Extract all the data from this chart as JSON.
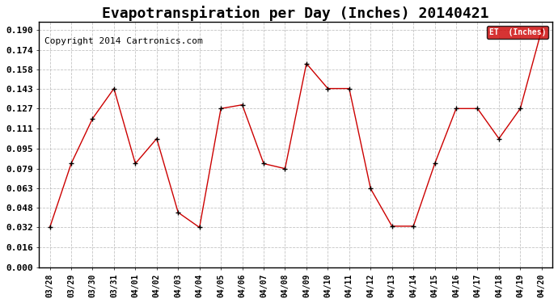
{
  "title": "Evapotranspiration per Day (Inches) 20140421",
  "copyright": "Copyright 2014 Cartronics.com",
  "legend_label": "ET  (Inches)",
  "x_labels": [
    "03/28",
    "03/29",
    "03/30",
    "03/31",
    "04/01",
    "04/02",
    "04/03",
    "04/04",
    "04/05",
    "04/06",
    "04/07",
    "04/08",
    "04/09",
    "04/10",
    "04/11",
    "04/12",
    "04/13",
    "04/14",
    "04/15",
    "04/16",
    "04/17",
    "04/18",
    "04/19",
    "04/20"
  ],
  "y_values": [
    0.032,
    0.083,
    0.119,
    0.143,
    0.083,
    0.103,
    0.044,
    0.032,
    0.127,
    0.13,
    0.083,
    0.079,
    0.163,
    0.143,
    0.143,
    0.063,
    0.033,
    0.033,
    0.083,
    0.127,
    0.127,
    0.103,
    0.127,
    0.19
  ],
  "ylim": [
    0.0,
    0.196
  ],
  "yticks": [
    0.0,
    0.016,
    0.032,
    0.048,
    0.063,
    0.079,
    0.095,
    0.111,
    0.127,
    0.143,
    0.158,
    0.174,
    0.19
  ],
  "line_color": "#cc0000",
  "marker": "+",
  "marker_color": "#000000",
  "bg_color": "#ffffff",
  "plot_bg_color": "#ffffff",
  "grid_color": "#aaaaaa",
  "title_fontsize": 13,
  "copyright_fontsize": 8,
  "legend_bg": "#cc0000",
  "legend_text_color": "#ffffff",
  "tick_fontsize": 8,
  "xtick_fontsize": 7
}
